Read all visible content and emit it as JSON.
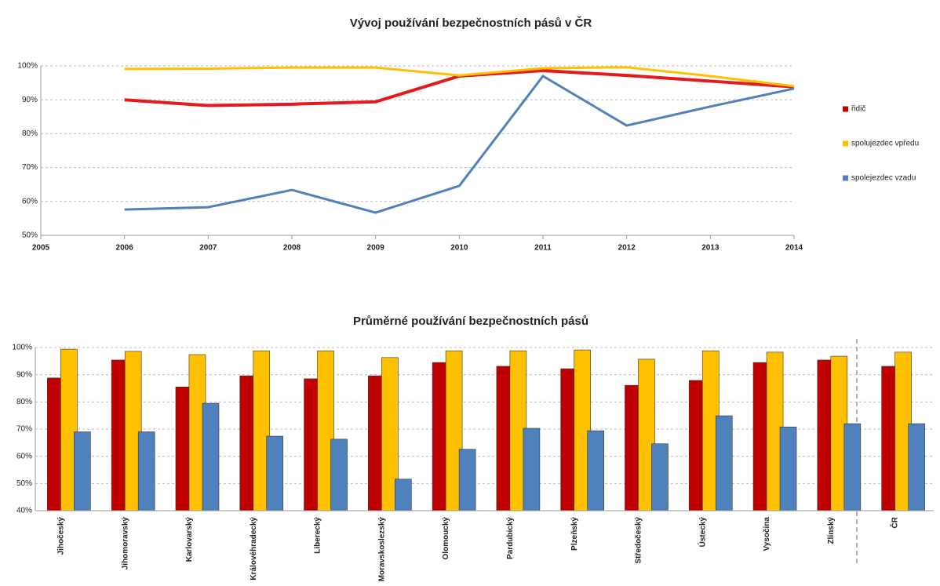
{
  "chart_data": [
    {
      "type": "line",
      "title": "Vývoj používání bezpečnostních pásů v ČR",
      "x": [
        2006,
        2007,
        2008,
        2009,
        2010,
        2011,
        2012,
        2013,
        2014
      ],
      "series": [
        {
          "name": "řidič",
          "color": "#e41a1c",
          "legend_color": "#c00000",
          "values": [
            90,
            88.3,
            88.7,
            89.4,
            97,
            98.6,
            97.2,
            95.5,
            93.8
          ]
        },
        {
          "name": "spolujezdec vpředu",
          "color": "#ffc000",
          "legend_color": "#ffc000",
          "values": [
            99.1,
            99.2,
            99.5,
            99.5,
            97.2,
            99.3,
            99.6,
            97,
            94
          ]
        },
        {
          "name": "spolejezdec vzadu",
          "color": "#4f81bd",
          "legend_color": "#4f81bd",
          "values": [
            57.6,
            58.3,
            63.4,
            56.7,
            64.6,
            97,
            82.4,
            88,
            93.3
          ]
        }
      ],
      "xlim": [
        2005,
        2014
      ],
      "xticks": [
        2005,
        2006,
        2007,
        2008,
        2009,
        2010,
        2011,
        2012,
        2013,
        2014
      ],
      "ylim": [
        50,
        100
      ],
      "yticks": [
        {
          "value": 50,
          "label": "50%"
        },
        {
          "value": 60,
          "label": "60%"
        },
        {
          "value": 70,
          "label": "70%"
        },
        {
          "value": 80,
          "label": "80%"
        },
        {
          "value": 90,
          "label": "90%"
        },
        {
          "value": 100,
          "label": "100%"
        }
      ],
      "grid": true,
      "legend": "right"
    },
    {
      "type": "bar",
      "title": "Průměrné používání bezpečnostních pásů",
      "categories": [
        "Jihočeský",
        "Jihomoravský",
        "Karlovarský",
        "Královéhradecký",
        "Liberecký",
        "Moravskoslezský",
        "Olomoucký",
        "Pardubický",
        "Plzeňský",
        "Středočeský",
        "Ústecký",
        "Vysočina",
        "Zlínský",
        "ČR"
      ],
      "series": [
        {
          "color": "#c00000",
          "values": [
            88.8,
            95.4,
            85.5,
            89.6,
            88.5,
            89.6,
            94.5,
            93.1,
            92.2,
            86.1,
            87.9,
            94.5,
            95.4,
            93.1
          ]
        },
        {
          "color": "#ffc000",
          "values": [
            99.4,
            98.6,
            97.4,
            98.8,
            98.8,
            96.3,
            98.8,
            98.8,
            99.1,
            95.7,
            98.8,
            98.3,
            96.8,
            98.3
          ]
        },
        {
          "color": "#4f81bd",
          "values": [
            69,
            69,
            79.5,
            67.4,
            66.3,
            51.6,
            62.6,
            70.3,
            69.4,
            64.6,
            74.9,
            70.8,
            72,
            72
          ]
        }
      ],
      "ylim": [
        40,
        100
      ],
      "yticks": [
        {
          "value": 40,
          "label": "40%"
        },
        {
          "value": 50,
          "label": "50%"
        },
        {
          "value": 60,
          "label": "60%"
        },
        {
          "value": 70,
          "label": "70%"
        },
        {
          "value": 80,
          "label": "80%"
        },
        {
          "value": 90,
          "label": "90%"
        },
        {
          "value": 100,
          "label": "100%"
        }
      ],
      "grid": true
    }
  ]
}
